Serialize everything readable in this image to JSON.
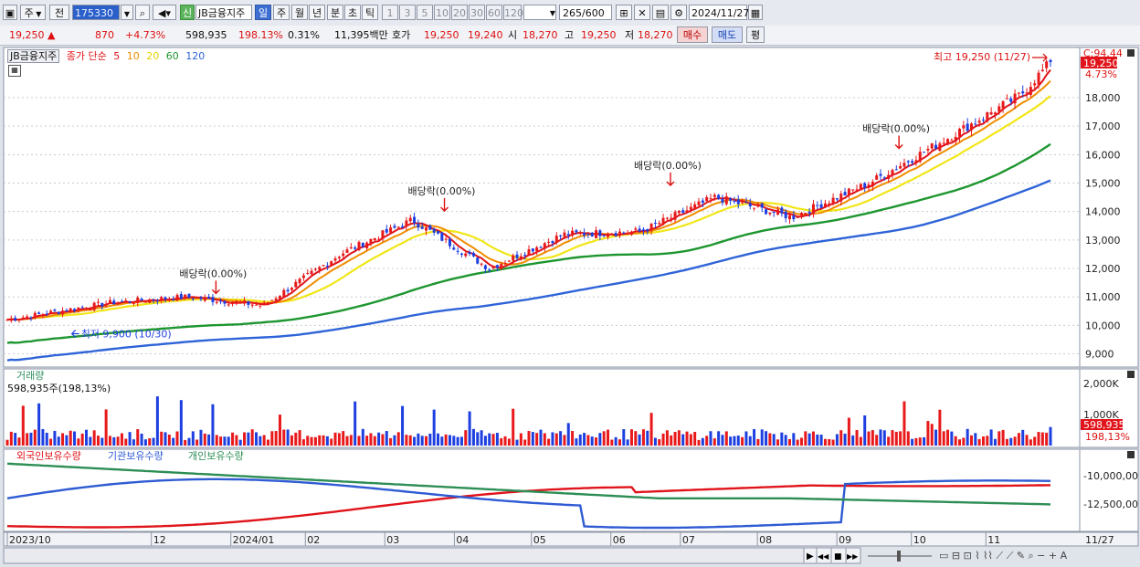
{
  "toolbar": {
    "period_type": "주",
    "prev": "전",
    "code": "175330",
    "market_badge": "신",
    "name": "JB금융지주",
    "tabs": [
      "일",
      "주",
      "월",
      "년",
      "분",
      "초",
      "틱"
    ],
    "active_tab": "일",
    "intervals": [
      "1",
      "3",
      "5",
      "10",
      "20",
      "30",
      "60",
      "120"
    ],
    "count": "265",
    "count_total": "/600",
    "date": "2024/11/27"
  },
  "quote": {
    "price": "19,250",
    "arrow": "▲",
    "change": "870",
    "change_pct": "+4.73%",
    "volume": "598,935",
    "volume_ratio": "198.13%",
    "turnover_pct": "0.31%",
    "amount": "11,395백만",
    "bid_label": "호가",
    "ask": "19,250",
    "bid": "19,240",
    "open_label": "시",
    "open": "18,270",
    "high_label": "고",
    "high": "19,250",
    "low_label": "저",
    "low": "18,270",
    "buy_label": "매수",
    "sell_label": "매도",
    "flat_label": "평"
  },
  "legend": {
    "name": "JB금융지주",
    "close_label": "종가 단순",
    "ma": [
      "5",
      "10",
      "20",
      "60",
      "120"
    ]
  },
  "colors": {
    "up": "#e8191b",
    "down": "#1d3fe0",
    "ma5": "#e0141a",
    "ma10": "#f08d00",
    "ma20": "#f1e617",
    "ma60": "#1e9630",
    "ma120": "#2f64d8",
    "foreign": "#e0141a",
    "institution": "#2f5bd3",
    "individual": "#2d8e55"
  },
  "chart_data": [
    {
      "type": "candlestick",
      "title": "JB금융지주",
      "series_label": "종가 단순",
      "y_axis_ticks": [
        "9,000",
        "10,000",
        "11,000",
        "12,000",
        "13,000",
        "14,000",
        "15,000",
        "16,000",
        "17,000",
        "18,000"
      ],
      "ylim": [
        8600,
        19700
      ],
      "top_label": "C:94.44",
      "price_tag": "19,250",
      "pct_tag": "4.73%",
      "annotations": [
        {
          "text": "최고 19,250 (11/27)",
          "x": "2024-11-27",
          "y": 19250
        },
        {
          "text": "최저 9,900 (10/30)",
          "x": "2023-10-30",
          "y": 9900
        },
        {
          "text": "배당락(0.00%)",
          "x": "2023-12-27",
          "y": 10800
        },
        {
          "text": "배당락(0.00%)",
          "x": "2024-03-28",
          "y": 13700
        },
        {
          "text": "배당락(0.00%)",
          "x": "2024-06-27",
          "y": 14600
        },
        {
          "text": "배당락(0.00%)",
          "x": "2024-09-27",
          "y": 15900
        }
      ],
      "x_axis_labels": [
        "2023/10",
        "12",
        "2024/01",
        "02",
        "03",
        "04",
        "05",
        "06",
        "07",
        "08",
        "09",
        "10",
        "11",
        "11/27"
      ],
      "close_approx": [
        {
          "date": "2023-10",
          "value": 10200
        },
        {
          "date": "2023-11",
          "value": 10800
        },
        {
          "date": "2023-12",
          "value": 11000
        },
        {
          "date": "2024-01",
          "value": 10700
        },
        {
          "date": "2024-02",
          "value": 12500
        },
        {
          "date": "2024-03",
          "value": 13700
        },
        {
          "date": "2024-04",
          "value": 12000
        },
        {
          "date": "2024-05",
          "value": 13200
        },
        {
          "date": "2024-06",
          "value": 13300
        },
        {
          "date": "2024-07",
          "value": 14500
        },
        {
          "date": "2024-08",
          "value": 13800
        },
        {
          "date": "2024-09",
          "value": 15000
        },
        {
          "date": "2024-10",
          "value": 16500
        },
        {
          "date": "2024-11",
          "value": 18100
        },
        {
          "date": "2024-11-27",
          "value": 19250
        }
      ],
      "moving_averages": [
        "5",
        "10",
        "20",
        "60",
        "120"
      ]
    },
    {
      "type": "bar",
      "title": "거래량",
      "info": "598,935주(198,13%)",
      "y_axis_ticks": [
        "2,000K",
        "1,000K"
      ],
      "ylim": [
        0,
        2300000
      ],
      "value_tag": "598,935",
      "pct_tag": "198,13%",
      "last_value": 598935
    },
    {
      "type": "line",
      "series": [
        {
          "name": "외국인보유수량"
        },
        {
          "name": "기관보유수량"
        },
        {
          "name": "개인보유수량"
        }
      ],
      "y_axis_ticks": [
        "-10,000,00",
        "-12,500,00"
      ]
    }
  ],
  "bottom": {
    "nav_buttons": [
      "▶",
      "◀◀",
      "■",
      "▶▶"
    ]
  }
}
